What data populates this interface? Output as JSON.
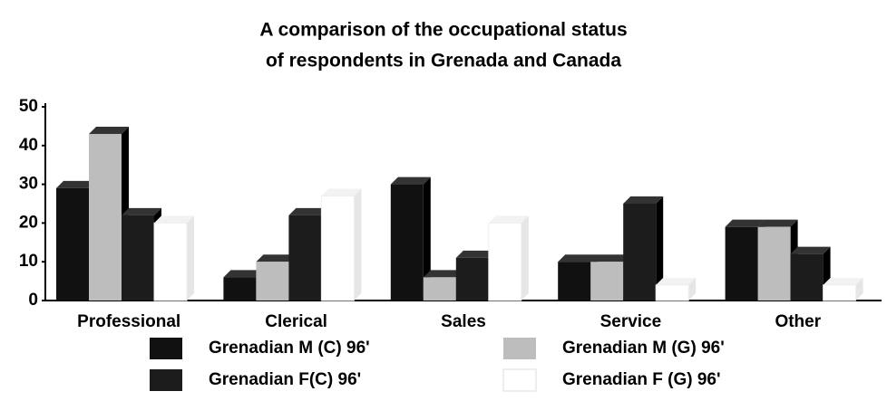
{
  "chart_data": {
    "type": "bar3d",
    "title": [
      "A comparison of the occupational status",
      "of respondents in Grenada and Canada"
    ],
    "categories": [
      "Professional",
      "Clerical",
      "Sales",
      "Service",
      "Other"
    ],
    "series": [
      {
        "name": "Grenadian M (C) 96'",
        "color": "#111111",
        "values": [
          29,
          6,
          30,
          10,
          19
        ]
      },
      {
        "name": "Grenadian M (G) 96'",
        "color": "#bdbdbd",
        "values": [
          43,
          10,
          6,
          10,
          19
        ]
      },
      {
        "name": "Grenadian F(C) 96'",
        "color": "#1c1c1c",
        "values": [
          22,
          22,
          11,
          25,
          12
        ]
      },
      {
        "name": "Grenadian F (G) 96'",
        "color": "#ffffff",
        "values": [
          20,
          27,
          20,
          4,
          4
        ]
      }
    ],
    "ylim": [
      0,
      50
    ],
    "yticks": [
      0,
      10,
      20,
      30,
      40,
      50
    ]
  }
}
